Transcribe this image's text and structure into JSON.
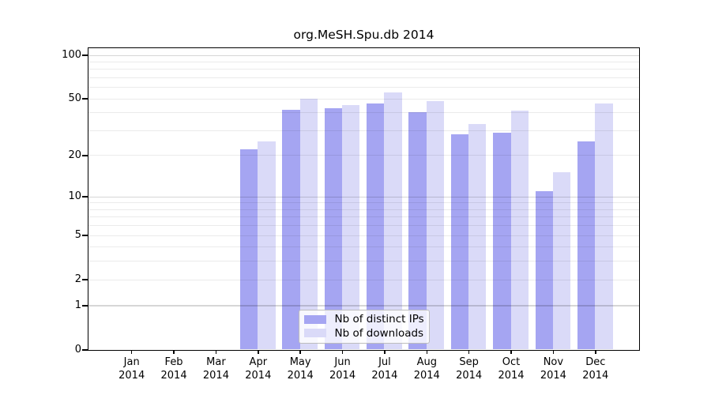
{
  "chart_data": {
    "type": "bar",
    "title": "org.MeSH.Spu.db 2014",
    "categories": [
      "Jan",
      "Feb",
      "Mar",
      "Apr",
      "May",
      "Jun",
      "Jul",
      "Aug",
      "Sep",
      "Oct",
      "Nov",
      "Dec"
    ],
    "year_label": "2014",
    "series": [
      {
        "name": "Nb of distinct IPs",
        "color": "#a5a5f2",
        "values": [
          0,
          0,
          0,
          22,
          42,
          43,
          46,
          40,
          28,
          29,
          11,
          25
        ]
      },
      {
        "name": "Nb of downloads",
        "color": "#dadaf8",
        "values": [
          0,
          0,
          0,
          25,
          50,
          45,
          55,
          48,
          33,
          41,
          15,
          46
        ]
      }
    ],
    "y_scale": "log1p",
    "ylim": [
      0,
      100
    ],
    "y_ticks": [
      0,
      1,
      2,
      5,
      10,
      20,
      50,
      100
    ],
    "grid_major": [
      1,
      10,
      100
    ],
    "grid_minor": [
      2,
      3,
      4,
      5,
      6,
      7,
      8,
      9,
      20,
      30,
      40,
      50,
      60,
      70,
      80,
      90
    ],
    "grid_on": true,
    "legend_position": "inside-bottom-center"
  }
}
